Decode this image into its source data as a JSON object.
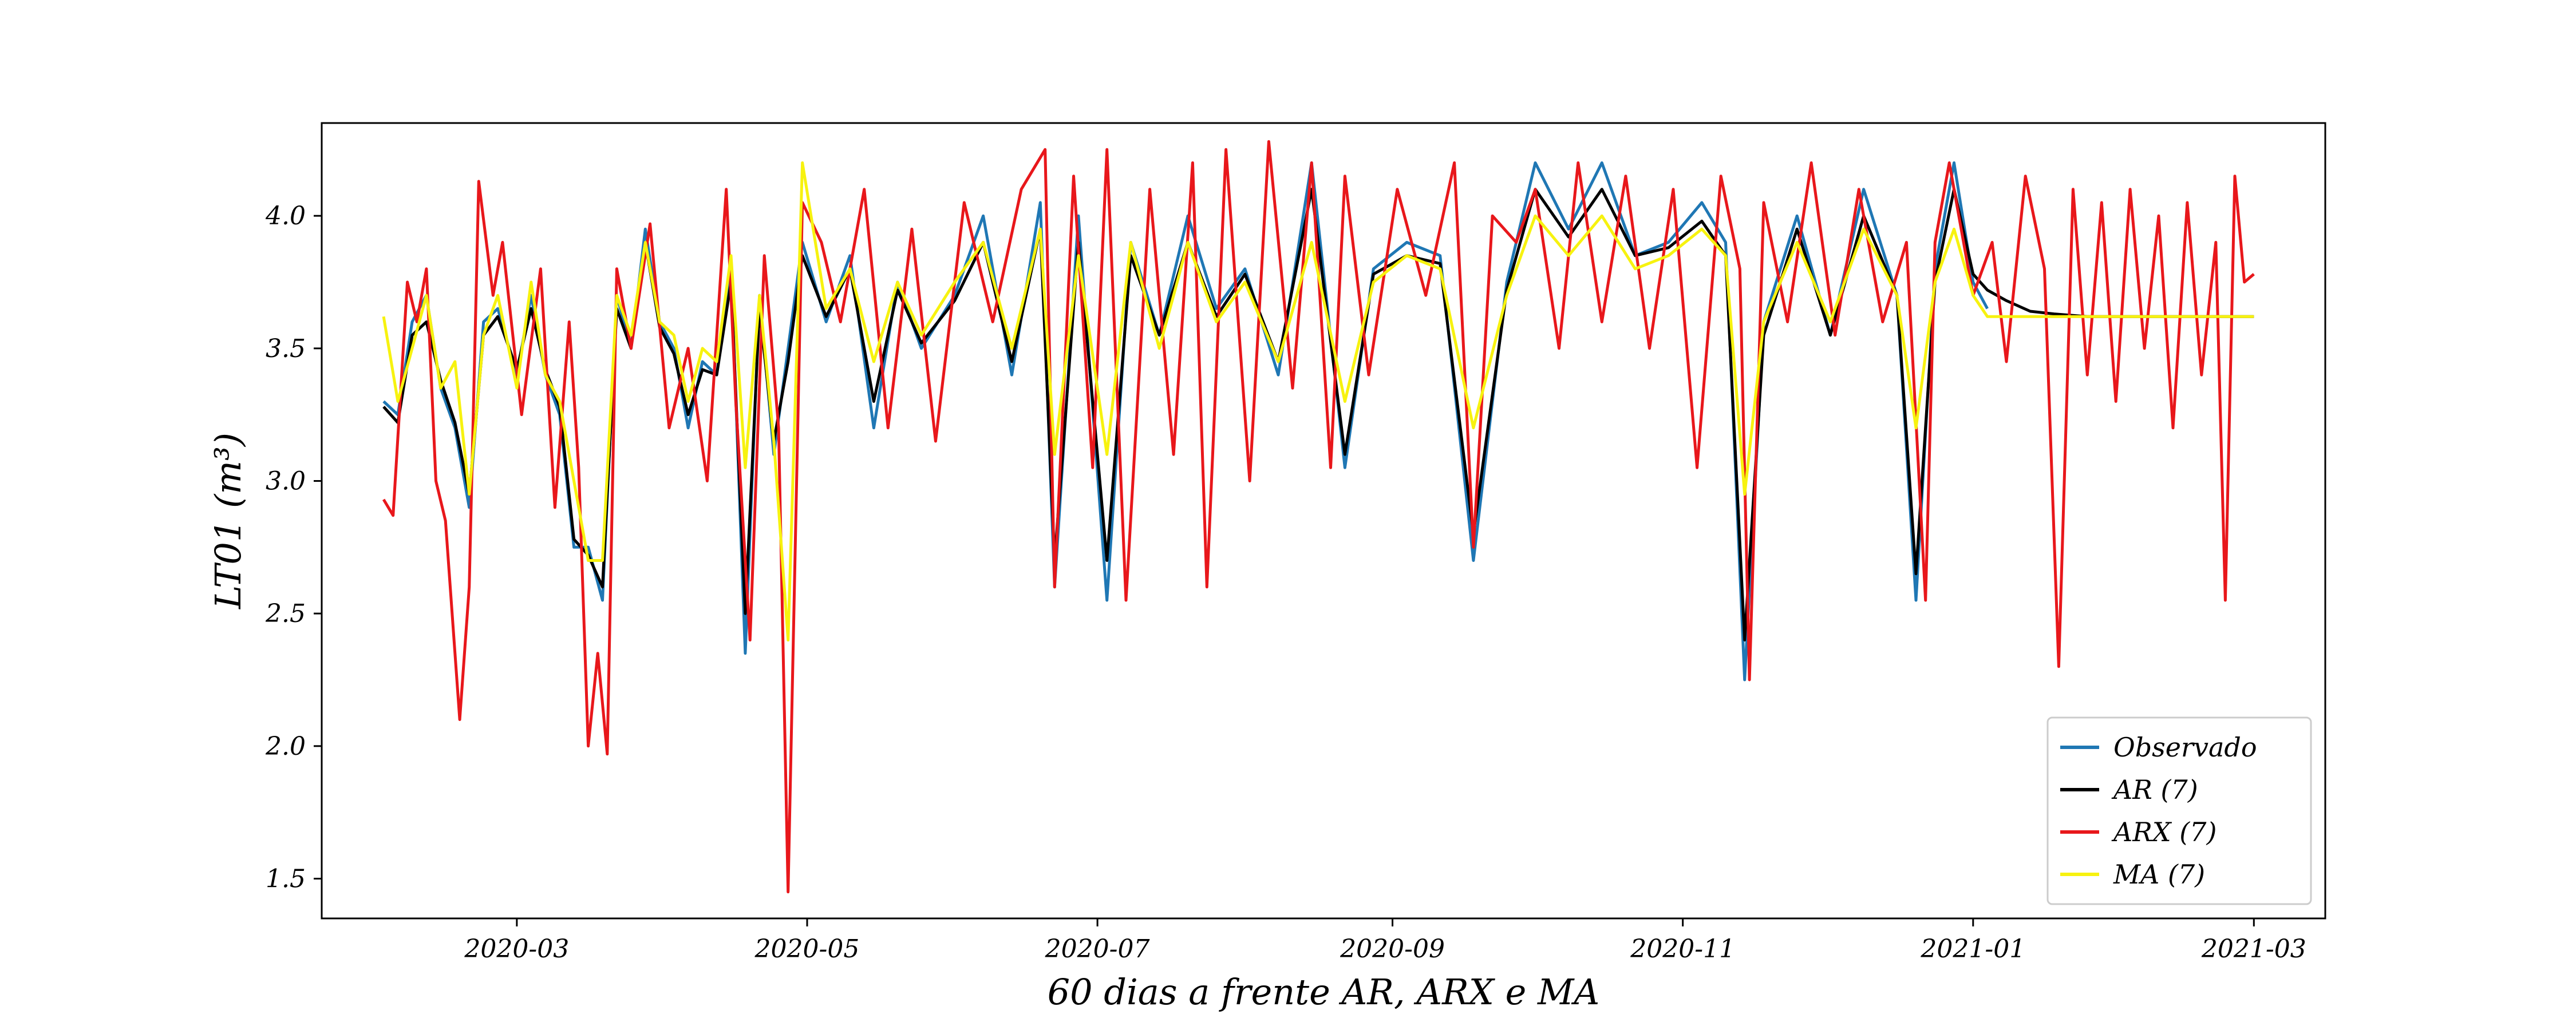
{
  "chart_data": {
    "type": "line",
    "title": "",
    "xlabel": "60 dias a frente AR, ARX e MA",
    "ylabel": "LT01 (m³)",
    "xlim": [
      "2020-01-20",
      "2021-03-16"
    ],
    "ylim": [
      1.35,
      4.35
    ],
    "grid": false,
    "legend_position": "bottom-right",
    "x_ticks": [
      "2020-03",
      "2020-05",
      "2020-07",
      "2020-09",
      "2020-11",
      "2021-01",
      "2021-03"
    ],
    "y_ticks": [
      "1.5",
      "2.0",
      "2.5",
      "3.0",
      "3.5",
      "4.0"
    ],
    "series": [
      {
        "name": "Observado",
        "color": "#1f77b4",
        "x": [
          "2020-02-02",
          "2020-02-05",
          "2020-02-08",
          "2020-02-11",
          "2020-02-14",
          "2020-02-17",
          "2020-02-20",
          "2020-02-23",
          "2020-02-26",
          "2020-03-01",
          "2020-03-04",
          "2020-03-07",
          "2020-03-10",
          "2020-03-13",
          "2020-03-16",
          "2020-03-19",
          "2020-03-22",
          "2020-03-25",
          "2020-03-28",
          "2020-03-31",
          "2020-04-03",
          "2020-04-06",
          "2020-04-09",
          "2020-04-12",
          "2020-04-15",
          "2020-04-18",
          "2020-04-21",
          "2020-04-24",
          "2020-04-27",
          "2020-04-30",
          "2020-05-05",
          "2020-05-10",
          "2020-05-15",
          "2020-05-20",
          "2020-05-25",
          "2020-06-01",
          "2020-06-07",
          "2020-06-13",
          "2020-06-19",
          "2020-06-22",
          "2020-06-27",
          "2020-07-03",
          "2020-07-08",
          "2020-07-14",
          "2020-07-20",
          "2020-07-26",
          "2020-08-01",
          "2020-08-08",
          "2020-08-15",
          "2020-08-22",
          "2020-08-28",
          "2020-09-04",
          "2020-09-11",
          "2020-09-18",
          "2020-09-25",
          "2020-10-01",
          "2020-10-08",
          "2020-10-15",
          "2020-10-22",
          "2020-10-29",
          "2020-11-05",
          "2020-11-10",
          "2020-11-14",
          "2020-11-18",
          "2020-11-25",
          "2020-12-02",
          "2020-12-09",
          "2020-12-16",
          "2020-12-20",
          "2020-12-24",
          "2020-12-28",
          "2021-01-01",
          "2021-01-04"
        ],
        "values": [
          3.3,
          3.25,
          3.6,
          3.7,
          3.35,
          3.2,
          2.9,
          3.6,
          3.65,
          3.4,
          3.7,
          3.4,
          3.25,
          2.75,
          2.75,
          2.55,
          3.7,
          3.5,
          3.95,
          3.6,
          3.5,
          3.2,
          3.45,
          3.4,
          3.8,
          2.35,
          3.7,
          3.1,
          3.5,
          3.9,
          3.6,
          3.85,
          3.2,
          3.75,
          3.5,
          3.7,
          4.0,
          3.4,
          4.05,
          2.6,
          4.0,
          2.55,
          3.9,
          3.55,
          4.0,
          3.65,
          3.8,
          3.4,
          4.2,
          3.05,
          3.8,
          3.9,
          3.85,
          2.7,
          3.75,
          4.2,
          3.95,
          4.2,
          3.85,
          3.9,
          4.05,
          3.9,
          2.25,
          3.6,
          4.0,
          3.55,
          4.1,
          3.7,
          2.55,
          3.8,
          4.2,
          3.75,
          3.65
        ]
      },
      {
        "name": "AR (7)",
        "color": "#000000",
        "x": [
          "2020-02-02",
          "2020-02-05",
          "2020-02-08",
          "2020-02-11",
          "2020-02-14",
          "2020-02-17",
          "2020-02-20",
          "2020-02-23",
          "2020-02-26",
          "2020-03-01",
          "2020-03-04",
          "2020-03-07",
          "2020-03-10",
          "2020-03-13",
          "2020-03-16",
          "2020-03-19",
          "2020-03-22",
          "2020-03-25",
          "2020-03-28",
          "2020-03-31",
          "2020-04-03",
          "2020-04-06",
          "2020-04-09",
          "2020-04-12",
          "2020-04-15",
          "2020-04-18",
          "2020-04-21",
          "2020-04-24",
          "2020-04-27",
          "2020-04-30",
          "2020-05-05",
          "2020-05-10",
          "2020-05-15",
          "2020-05-20",
          "2020-05-25",
          "2020-06-01",
          "2020-06-07",
          "2020-06-13",
          "2020-06-19",
          "2020-06-22",
          "2020-06-27",
          "2020-07-03",
          "2020-07-08",
          "2020-07-14",
          "2020-07-20",
          "2020-07-26",
          "2020-08-01",
          "2020-08-08",
          "2020-08-15",
          "2020-08-22",
          "2020-08-28",
          "2020-09-04",
          "2020-09-11",
          "2020-09-18",
          "2020-09-25",
          "2020-10-01",
          "2020-10-08",
          "2020-10-15",
          "2020-10-22",
          "2020-10-29",
          "2020-11-05",
          "2020-11-10",
          "2020-11-14",
          "2020-11-18",
          "2020-11-25",
          "2020-12-02",
          "2020-12-09",
          "2020-12-16",
          "2020-12-20",
          "2020-12-24",
          "2020-12-28",
          "2021-01-01",
          "2021-01-04",
          "2021-01-08",
          "2021-01-13",
          "2021-01-18",
          "2021-01-25",
          "2021-02-05",
          "2021-02-15",
          "2021-03-01"
        ],
        "values": [
          3.28,
          3.22,
          3.55,
          3.6,
          3.38,
          3.22,
          2.95,
          3.55,
          3.62,
          3.42,
          3.65,
          3.42,
          3.28,
          2.78,
          2.72,
          2.6,
          3.65,
          3.5,
          3.9,
          3.58,
          3.48,
          3.25,
          3.42,
          3.4,
          3.75,
          2.5,
          3.65,
          3.15,
          3.45,
          3.85,
          3.62,
          3.8,
          3.3,
          3.72,
          3.52,
          3.68,
          3.9,
          3.45,
          3.95,
          2.7,
          3.9,
          2.7,
          3.85,
          3.55,
          3.9,
          3.62,
          3.78,
          3.45,
          4.1,
          3.1,
          3.78,
          3.85,
          3.82,
          2.8,
          3.72,
          4.1,
          3.92,
          4.1,
          3.85,
          3.88,
          3.98,
          3.85,
          2.4,
          3.55,
          3.95,
          3.55,
          4.0,
          3.7,
          2.65,
          3.75,
          4.1,
          3.78,
          3.72,
          3.68,
          3.64,
          3.63,
          3.62,
          3.62,
          3.62,
          3.62
        ]
      },
      {
        "name": "ARX (7)",
        "color": "#e8171b",
        "x": [
          "2020-02-02",
          "2020-02-04",
          "2020-02-07",
          "2020-02-09",
          "2020-02-11",
          "2020-02-13",
          "2020-02-15",
          "2020-02-18",
          "2020-02-20",
          "2020-02-22",
          "2020-02-25",
          "2020-02-27",
          "2020-03-02",
          "2020-03-06",
          "2020-03-09",
          "2020-03-12",
          "2020-03-14",
          "2020-03-16",
          "2020-03-18",
          "2020-03-20",
          "2020-03-22",
          "2020-03-25",
          "2020-03-29",
          "2020-04-02",
          "2020-04-06",
          "2020-04-10",
          "2020-04-14",
          "2020-04-16",
          "2020-04-19",
          "2020-04-22",
          "2020-04-25",
          "2020-04-27",
          "2020-04-30",
          "2020-05-04",
          "2020-05-08",
          "2020-05-13",
          "2020-05-18",
          "2020-05-23",
          "2020-05-28",
          "2020-06-03",
          "2020-06-09",
          "2020-06-15",
          "2020-06-20",
          "2020-06-22",
          "2020-06-26",
          "2020-06-30",
          "2020-07-03",
          "2020-07-07",
          "2020-07-12",
          "2020-07-17",
          "2020-07-21",
          "2020-07-24",
          "2020-07-28",
          "2020-08-02",
          "2020-08-06",
          "2020-08-11",
          "2020-08-15",
          "2020-08-19",
          "2020-08-22",
          "2020-08-27",
          "2020-09-02",
          "2020-09-08",
          "2020-09-14",
          "2020-09-18",
          "2020-09-22",
          "2020-09-27",
          "2020-10-01",
          "2020-10-06",
          "2020-10-10",
          "2020-10-15",
          "2020-10-20",
          "2020-10-25",
          "2020-10-30",
          "2020-11-04",
          "2020-11-09",
          "2020-11-13",
          "2020-11-15",
          "2020-11-18",
          "2020-11-23",
          "2020-11-28",
          "2020-12-03",
          "2020-12-08",
          "2020-12-13",
          "2020-12-18",
          "2020-12-22",
          "2020-12-24",
          "2020-12-27",
          "2021-01-01",
          "2021-01-05",
          "2021-01-08",
          "2021-01-12",
          "2021-01-16",
          "2021-01-19",
          "2021-01-22",
          "2021-01-25",
          "2021-01-28",
          "2021-01-31",
          "2021-02-03",
          "2021-02-06",
          "2021-02-09",
          "2021-02-12",
          "2021-02-15",
          "2021-02-18",
          "2021-02-21",
          "2021-02-23",
          "2021-02-25",
          "2021-02-27",
          "2021-03-01"
        ],
        "values": [
          2.93,
          2.87,
          3.75,
          3.6,
          3.8,
          3.0,
          2.85,
          2.1,
          2.6,
          4.13,
          3.7,
          3.9,
          3.25,
          3.8,
          2.9,
          3.6,
          3.05,
          2.0,
          2.35,
          1.97,
          3.8,
          3.5,
          3.97,
          3.2,
          3.5,
          3.0,
          4.1,
          3.3,
          2.4,
          3.85,
          3.2,
          1.45,
          4.05,
          3.9,
          3.6,
          4.1,
          3.2,
          3.95,
          3.15,
          4.05,
          3.6,
          4.1,
          4.25,
          2.6,
          4.15,
          3.05,
          4.25,
          2.55,
          4.1,
          3.1,
          4.2,
          2.6,
          4.25,
          3.0,
          4.28,
          3.35,
          4.2,
          3.05,
          4.15,
          3.4,
          4.1,
          3.7,
          4.2,
          2.75,
          4.0,
          3.9,
          4.1,
          3.5,
          4.2,
          3.6,
          4.15,
          3.5,
          4.1,
          3.05,
          4.15,
          3.8,
          2.25,
          4.05,
          3.6,
          4.2,
          3.55,
          4.1,
          3.6,
          3.9,
          2.55,
          3.9,
          4.2,
          3.7,
          3.9,
          3.45,
          4.15,
          3.8,
          2.3,
          4.1,
          3.4,
          4.05,
          3.3,
          4.1,
          3.5,
          4.0,
          3.2,
          4.05,
          3.4,
          3.9,
          2.55,
          4.15,
          3.75,
          3.78
        ]
      },
      {
        "name": "MA (7)",
        "color": "#f7f20f",
        "x": [
          "2020-02-02",
          "2020-02-05",
          "2020-02-08",
          "2020-02-11",
          "2020-02-14",
          "2020-02-17",
          "2020-02-20",
          "2020-02-23",
          "2020-02-26",
          "2020-03-01",
          "2020-03-04",
          "2020-03-07",
          "2020-03-10",
          "2020-03-13",
          "2020-03-16",
          "2020-03-19",
          "2020-03-22",
          "2020-03-25",
          "2020-03-28",
          "2020-03-31",
          "2020-04-03",
          "2020-04-06",
          "2020-04-09",
          "2020-04-12",
          "2020-04-15",
          "2020-04-18",
          "2020-04-21",
          "2020-04-24",
          "2020-04-27",
          "2020-04-30",
          "2020-05-05",
          "2020-05-10",
          "2020-05-15",
          "2020-05-20",
          "2020-05-25",
          "2020-06-01",
          "2020-06-07",
          "2020-06-13",
          "2020-06-19",
          "2020-06-22",
          "2020-06-27",
          "2020-07-03",
          "2020-07-08",
          "2020-07-14",
          "2020-07-20",
          "2020-07-26",
          "2020-08-01",
          "2020-08-08",
          "2020-08-15",
          "2020-08-22",
          "2020-08-28",
          "2020-09-04",
          "2020-09-11",
          "2020-09-18",
          "2020-09-25",
          "2020-10-01",
          "2020-10-08",
          "2020-10-15",
          "2020-10-22",
          "2020-10-29",
          "2020-11-05",
          "2020-11-10",
          "2020-11-14",
          "2020-11-18",
          "2020-11-25",
          "2020-12-02",
          "2020-12-09",
          "2020-12-16",
          "2020-12-20",
          "2020-12-24",
          "2020-12-28",
          "2021-01-01",
          "2021-01-04",
          "2021-01-08",
          "2021-01-13",
          "2021-01-20",
          "2021-02-01",
          "2021-02-15",
          "2021-03-01"
        ],
        "values": [
          3.62,
          3.3,
          3.5,
          3.7,
          3.35,
          3.45,
          2.95,
          3.55,
          3.7,
          3.35,
          3.75,
          3.4,
          3.3,
          3.0,
          2.7,
          2.7,
          3.7,
          3.55,
          3.9,
          3.6,
          3.55,
          3.3,
          3.5,
          3.45,
          3.85,
          3.05,
          3.7,
          3.15,
          2.4,
          4.2,
          3.65,
          3.8,
          3.45,
          3.75,
          3.55,
          3.75,
          3.9,
          3.5,
          3.95,
          3.1,
          3.85,
          3.1,
          3.9,
          3.5,
          3.9,
          3.6,
          3.75,
          3.45,
          3.9,
          3.3,
          3.75,
          3.85,
          3.8,
          3.2,
          3.7,
          4.0,
          3.85,
          4.0,
          3.8,
          3.85,
          3.95,
          3.85,
          2.95,
          3.6,
          3.9,
          3.6,
          3.95,
          3.7,
          3.2,
          3.75,
          3.95,
          3.7,
          3.62,
          3.62,
          3.62,
          3.62,
          3.62,
          3.62,
          3.62
        ]
      }
    ]
  }
}
